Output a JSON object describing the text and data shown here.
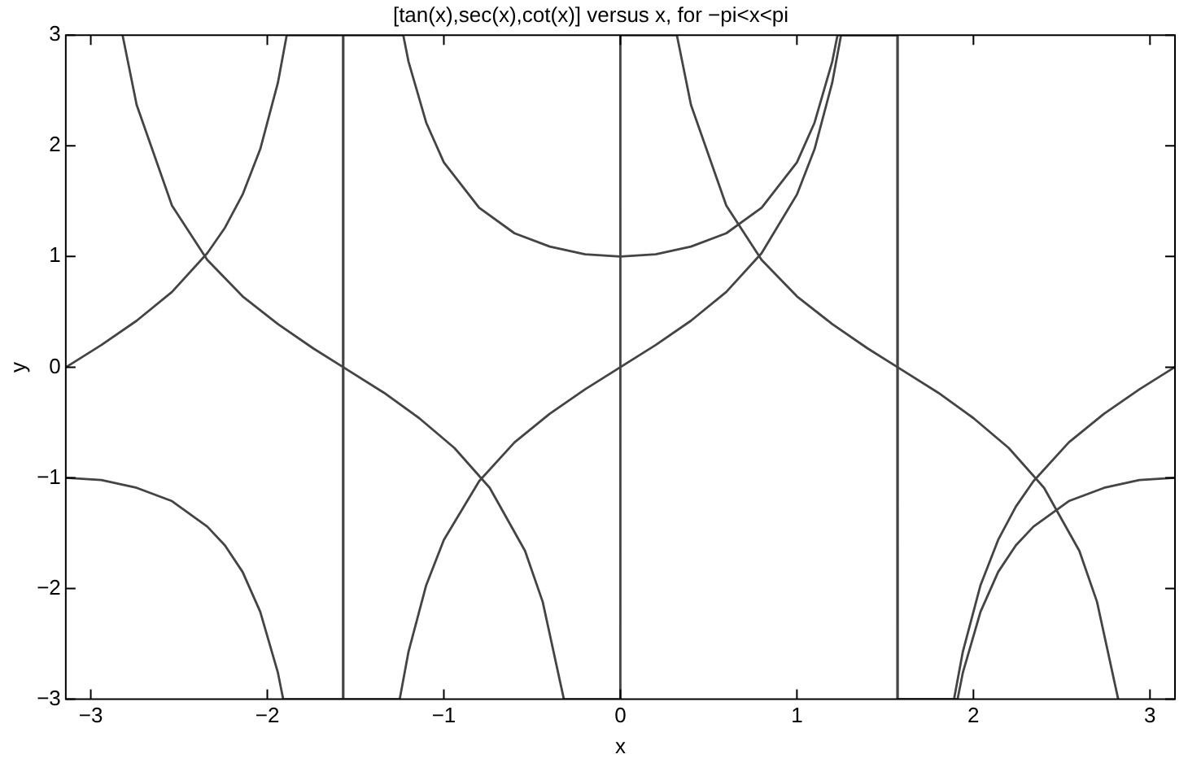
{
  "chart_data": {
    "type": "line",
    "title": "[tan(x),sec(x),cot(x)] versus x, for −pi<x<pi",
    "xlabel": "x",
    "ylabel": "y",
    "xlim": [
      -3.1416,
      3.1416
    ],
    "ylim": [
      -3,
      3
    ],
    "xticks": [
      {
        "value": -3,
        "label": "−3"
      },
      {
        "value": -2,
        "label": "−2"
      },
      {
        "value": -1,
        "label": "−1"
      },
      0,
      1,
      2,
      3
    ],
    "yticks": [
      {
        "value": -3,
        "label": "−3"
      },
      {
        "value": -2,
        "label": "−2"
      },
      {
        "value": -1,
        "label": "−1"
      },
      0,
      1,
      2,
      3
    ],
    "legend": false,
    "marker": "none",
    "line_style": "solid",
    "series": [
      {
        "color": "#444444",
        "x": [
          -3.14,
          -2.94,
          -2.74,
          -2.54,
          -2.34,
          -2.24,
          -2.14,
          -2.04,
          -1.94,
          -1.89,
          -1.57,
          -1.57,
          -1.25,
          -1.2,
          -1.1,
          -1.0,
          -0.8,
          -0.6,
          -0.4,
          -0.2,
          0,
          0.2,
          0.4,
          0.6,
          0.8,
          1.0,
          1.1,
          1.2,
          1.25,
          1.57,
          1.57,
          1.89,
          1.94,
          2.04,
          2.14,
          2.24,
          2.34,
          2.54,
          2.74,
          2.94,
          3.14
        ],
        "values": [
          0,
          0.2,
          0.42,
          0.68,
          1.03,
          1.26,
          1.56,
          1.97,
          2.57,
          3,
          3,
          -3,
          -3,
          -2.57,
          -1.97,
          -1.56,
          -1.03,
          -0.68,
          -0.42,
          -0.2,
          0,
          0.2,
          0.42,
          0.68,
          1.03,
          1.56,
          1.97,
          2.57,
          3,
          3,
          -3,
          -3,
          -2.57,
          -1.97,
          -1.56,
          -1.26,
          -1.03,
          -0.68,
          -0.42,
          -0.2,
          0
        ]
      },
      {
        "color": "#444444",
        "x": [
          -3.14,
          -2.94,
          -2.74,
          -2.54,
          -2.34,
          -2.24,
          -2.14,
          -2.04,
          -1.94,
          -1.91,
          -1.57,
          -1.57,
          -1.23,
          -1.2,
          -1.1,
          -1.0,
          -0.8,
          -0.6,
          -0.4,
          -0.2,
          0,
          0.2,
          0.4,
          0.6,
          0.8,
          1.0,
          1.1,
          1.2,
          1.23,
          1.57,
          1.57,
          1.91,
          1.94,
          2.04,
          2.14,
          2.24,
          2.34,
          2.54,
          2.74,
          2.94,
          3.14
        ],
        "values": [
          -1,
          -1.02,
          -1.09,
          -1.21,
          -1.44,
          -1.61,
          -1.85,
          -2.21,
          -2.76,
          -3,
          -3,
          3,
          3,
          2.76,
          2.21,
          1.85,
          1.44,
          1.21,
          1.09,
          1.02,
          1,
          1.02,
          1.09,
          1.21,
          1.44,
          1.85,
          2.21,
          2.76,
          3,
          3,
          -3,
          -3,
          -2.76,
          -2.21,
          -1.85,
          -1.61,
          -1.44,
          -1.21,
          -1.09,
          -1.02,
          -1
        ]
      },
      {
        "color": "#444444",
        "x": [
          -2.82,
          -2.74,
          -2.54,
          -2.34,
          -2.14,
          -1.94,
          -1.74,
          -1.57,
          -1.34,
          -1.14,
          -0.94,
          -0.74,
          -0.54,
          -0.44,
          -0.32,
          0,
          0,
          0.32,
          0.4,
          0.6,
          0.8,
          1.0,
          1.2,
          1.4,
          1.57,
          1.8,
          2.0,
          2.2,
          2.4,
          2.6,
          2.7,
          2.82
        ],
        "values": [
          3,
          2.37,
          1.46,
          0.97,
          0.64,
          0.39,
          0.17,
          0,
          -0.23,
          -0.46,
          -0.73,
          -1.09,
          -1.66,
          -2.12,
          -3,
          -3,
          3,
          3,
          2.37,
          1.46,
          0.97,
          0.64,
          0.39,
          0.17,
          0,
          -0.23,
          -0.46,
          -0.73,
          -1.09,
          -1.66,
          -2.12,
          -3
        ]
      }
    ]
  }
}
